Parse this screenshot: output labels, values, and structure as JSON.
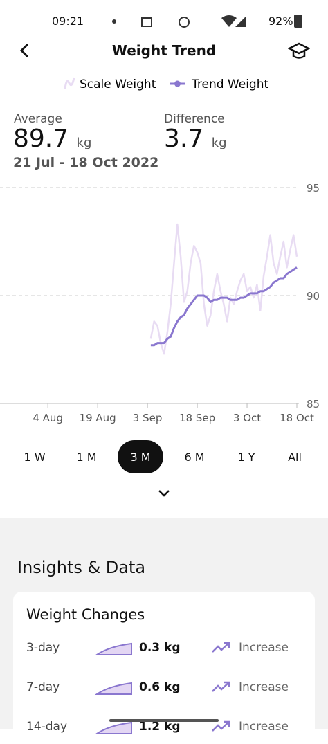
{
  "status_bar": {
    "time": "09:21",
    "battery": "92%"
  },
  "header": {
    "title": "Weight Trend"
  },
  "stats": {
    "average_label": "Average",
    "average_value": "89.7",
    "average_unit": "kg",
    "period": "21 Jul - 18 Oct 2022",
    "difference_label": "Difference",
    "difference_value": "3.7",
    "difference_unit": "kg"
  },
  "chart_data": {
    "type": "line",
    "x": [
      "4 Sep",
      "5 Sep",
      "6 Sep",
      "7 Sep",
      "8 Sep",
      "9 Sep",
      "10 Sep",
      "11 Sep",
      "12 Sep",
      "13 Sep",
      "14 Sep",
      "15 Sep",
      "16 Sep",
      "17 Sep",
      "18 Sep",
      "19 Sep",
      "20 Sep",
      "21 Sep",
      "22 Sep",
      "23 Sep",
      "24 Sep",
      "25 Sep",
      "26 Sep",
      "27 Sep",
      "28 Sep",
      "29 Sep",
      "30 Sep",
      "1 Oct",
      "2 Oct",
      "3 Oct",
      "4 Oct",
      "5 Oct",
      "6 Oct",
      "7 Oct",
      "8 Oct",
      "9 Oct",
      "10 Oct",
      "11 Oct",
      "12 Oct",
      "13 Oct",
      "14 Oct",
      "15 Oct",
      "16 Oct",
      "17 Oct",
      "18 Oct"
    ],
    "series": [
      {
        "name": "Scale Weight",
        "color": "#e8dcf3",
        "values": [
          88.0,
          88.8,
          88.6,
          87.8,
          87.3,
          88.3,
          89.6,
          91.5,
          93.3,
          91.8,
          89.7,
          90.2,
          91.5,
          92.3,
          92.0,
          91.5,
          89.6,
          88.6,
          89.1,
          90.2,
          91.0,
          90.2,
          89.6,
          88.8,
          89.9,
          89.6,
          90.2,
          90.7,
          91.0,
          90.2,
          90.4,
          89.9,
          90.5,
          89.3,
          90.9,
          91.8,
          92.8,
          91.5,
          91.0,
          91.8,
          92.5,
          91.3,
          92.1,
          92.8,
          91.8
        ]
      },
      {
        "name": "Trend Weight",
        "color": "#8a77cf",
        "values": [
          87.7,
          87.7,
          87.8,
          87.8,
          87.8,
          88.0,
          88.1,
          88.5,
          88.8,
          89.0,
          89.1,
          89.4,
          89.6,
          89.8,
          90.0,
          90.0,
          90.0,
          89.9,
          89.7,
          89.8,
          89.8,
          89.9,
          89.9,
          89.9,
          89.8,
          89.8,
          89.8,
          89.9,
          89.9,
          90.0,
          90.1,
          90.1,
          90.1,
          90.2,
          90.2,
          90.3,
          90.4,
          90.6,
          90.7,
          90.8,
          90.8,
          91.0,
          91.1,
          91.2,
          91.3
        ]
      }
    ],
    "xlim": [
      "21 Jul",
      "18 Oct"
    ],
    "xticks": [
      "4 Aug",
      "19 Aug",
      "3 Sep",
      "18 Sep",
      "3 Oct",
      "18 Oct"
    ],
    "ylim": [
      85,
      95
    ],
    "yticks": [
      85,
      90,
      95
    ],
    "grid": true
  },
  "ranges": {
    "options": [
      "1 W",
      "1 M",
      "3 M",
      "6 M",
      "1 Y",
      "All"
    ],
    "selected": 2
  },
  "insights": {
    "title": "Insights & Data",
    "card_title": "Weight Changes",
    "rows": [
      [
        "3-day",
        "0.3 kg",
        "Increase"
      ],
      [
        "7-day",
        "0.6 kg",
        "Increase"
      ],
      [
        "14-day",
        "1.2 kg",
        "Increase"
      ]
    ]
  }
}
